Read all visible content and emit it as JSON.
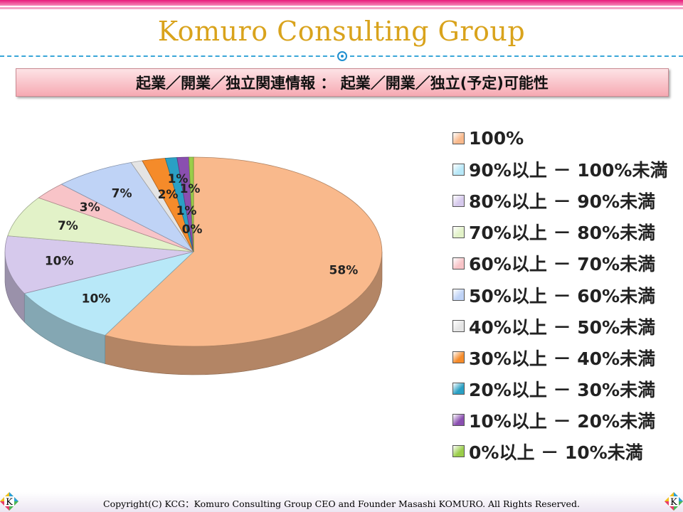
{
  "header": {
    "brand": "Komuro Consulting Group",
    "subtitle": "起業／開業／独立関連情報 ： 起業／開業／独立(予定)可能性"
  },
  "footer": {
    "copyright": "Copyright(C) KCG：Komuro Consulting Group CEO and Founder Masashi KOMURO. All Rights Reserved.",
    "logo_letter": "K"
  },
  "chart_data": {
    "type": "pie",
    "style": "3d-tilted",
    "legend_position": "right",
    "categories": [
      "100%",
      "90%以上 － 100%未満",
      "80%以上 － 90%未満",
      "70%以上 － 80%未満",
      "60%以上 － 70%未満",
      "50%以上 － 60%未満",
      "40%以上 － 50%未満",
      "30%以上 － 40%未満",
      "20%以上 － 30%未満",
      "10%以上 － 20%未満",
      "0%以上 － 10%未満"
    ],
    "values": [
      58,
      10,
      10,
      7,
      3,
      7,
      1,
      2,
      1,
      1,
      0
    ],
    "data_labels": [
      "58%",
      "10%",
      "10%",
      "7%",
      "3%",
      "7%",
      "1%",
      "2%",
      "1%",
      "1%",
      "0%"
    ],
    "colors": [
      "#f9b98c",
      "#b8e8f8",
      "#d6c9ec",
      "#e2f2c8",
      "#f8c4c8",
      "#bfd3f6",
      "#e4e4e4",
      "#f58b2a",
      "#2aa0c4",
      "#8a4fb0",
      "#9acd4a"
    ]
  }
}
